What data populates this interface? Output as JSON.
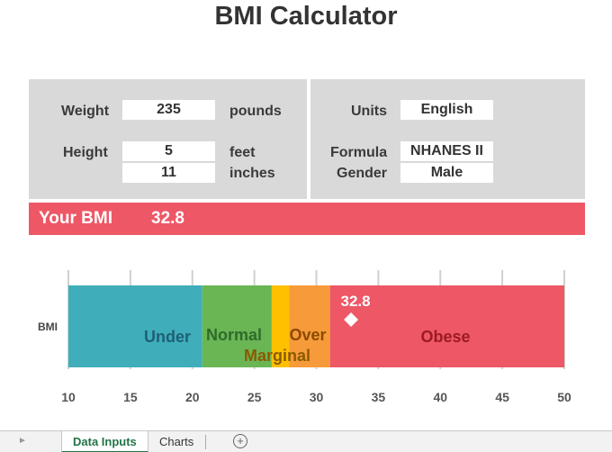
{
  "title": "BMI Calculator",
  "inputs": {
    "weight_label": "Weight",
    "weight_value": "235",
    "weight_unit": "pounds",
    "height_label": "Height",
    "height_feet": "5",
    "height_feet_unit": "feet",
    "height_inches": "11",
    "height_inches_unit": "inches",
    "units_label": "Units",
    "units_value": "English",
    "formula_label": "Formula",
    "formula_value": "NHANES II",
    "gender_label": "Gender",
    "gender_value": "Male"
  },
  "result": {
    "label": "Your BMI",
    "value": "32.8"
  },
  "chart_data": {
    "type": "bar",
    "orientation": "horizontal-stacked",
    "category": "BMI",
    "segments": [
      {
        "name": "Under",
        "start": 10,
        "end": 20.8,
        "color": "#3faeba",
        "label_color": "#1f5f75"
      },
      {
        "name": "Normal",
        "start": 20.8,
        "end": 26.4,
        "color": "#6ab655",
        "label_color": "#2e6b2a"
      },
      {
        "name": "Marginal",
        "start": 26.4,
        "end": 27.8,
        "color": "#ffc000",
        "label_color": "#8b5a00"
      },
      {
        "name": "Over",
        "start": 27.8,
        "end": 31.1,
        "color": "#f79b3a",
        "label_color": "#8b4a00"
      },
      {
        "name": "Obese",
        "start": 31.1,
        "end": 50,
        "color": "#ee5766",
        "label_color": "#9c1a24"
      }
    ],
    "marker": {
      "value": 32.8,
      "label": "32.8"
    },
    "xlim": [
      10,
      50
    ],
    "ticks": [
      10,
      15,
      20,
      25,
      30,
      35,
      40,
      45,
      50
    ],
    "grid": true
  },
  "sheet_tabs": {
    "active": "Data Inputs",
    "other": "Charts",
    "add_symbol": "+",
    "nav_symbol": "►"
  }
}
